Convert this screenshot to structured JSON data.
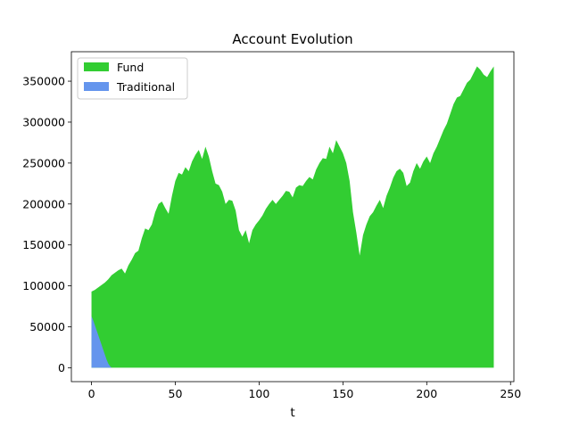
{
  "chart_data": {
    "type": "area",
    "title": "Account Evolution",
    "xlabel": "t",
    "ylabel": "",
    "xlim": [
      -12,
      252
    ],
    "ylim": [
      -17000,
      386000
    ],
    "xticks": [
      0,
      50,
      100,
      150,
      200,
      250
    ],
    "yticks": [
      0,
      50000,
      100000,
      150000,
      200000,
      250000,
      300000,
      350000
    ],
    "ytick_labels": [
      "0",
      "50000",
      "100000",
      "150000",
      "200000",
      "250000",
      "300000",
      "350000"
    ],
    "legend_position": "upper-left",
    "series": [
      {
        "name": "Fund",
        "color": "#32cd32",
        "x": [
          0,
          2,
          4,
          6,
          8,
          10,
          12,
          14,
          16,
          18,
          20,
          22,
          24,
          26,
          28,
          30,
          32,
          34,
          36,
          38,
          40,
          42,
          44,
          46,
          48,
          50,
          52,
          54,
          56,
          58,
          60,
          62,
          64,
          66,
          68,
          70,
          72,
          74,
          76,
          78,
          80,
          82,
          84,
          86,
          88,
          90,
          92,
          94,
          96,
          98,
          100,
          102,
          104,
          106,
          108,
          110,
          112,
          114,
          116,
          118,
          120,
          122,
          124,
          126,
          128,
          130,
          132,
          134,
          136,
          138,
          140,
          142,
          144,
          146,
          148,
          150,
          152,
          154,
          156,
          158,
          160,
          162,
          164,
          166,
          168,
          170,
          172,
          174,
          176,
          178,
          180,
          182,
          184,
          186,
          188,
          190,
          192,
          194,
          196,
          198,
          200,
          202,
          204,
          206,
          208,
          210,
          212,
          214,
          216,
          218,
          220,
          222,
          224,
          226,
          228,
          230,
          232,
          234,
          236,
          238,
          240
        ],
        "values": [
          93000,
          95000,
          98000,
          101000,
          104000,
          108000,
          113000,
          116000,
          119000,
          121000,
          115000,
          125000,
          132000,
          140000,
          143000,
          158000,
          170000,
          168000,
          175000,
          190000,
          200000,
          203000,
          195000,
          188000,
          210000,
          228000,
          238000,
          236000,
          245000,
          240000,
          252000,
          260000,
          266000,
          255000,
          270000,
          258000,
          240000,
          225000,
          223000,
          215000,
          200000,
          205000,
          204000,
          192000,
          168000,
          160000,
          168000,
          152000,
          168000,
          175000,
          180000,
          186000,
          194000,
          200000,
          205000,
          200000,
          205000,
          210000,
          216000,
          215000,
          208000,
          220000,
          223000,
          222000,
          228000,
          233000,
          230000,
          242000,
          250000,
          256000,
          255000,
          270000,
          262000,
          278000,
          270000,
          262000,
          250000,
          228000,
          190000,
          165000,
          137000,
          162000,
          175000,
          185000,
          190000,
          198000,
          205000,
          195000,
          210000,
          220000,
          232000,
          240000,
          243000,
          238000,
          222000,
          226000,
          240000,
          250000,
          243000,
          252000,
          258000,
          250000,
          262000,
          270000,
          280000,
          290000,
          298000,
          310000,
          322000,
          330000,
          332000,
          340000,
          348000,
          352000,
          360000,
          368000,
          364000,
          358000,
          355000,
          362000,
          368000
        ]
      },
      {
        "name": "Traditional",
        "color": "#6495ed",
        "x": [
          0,
          1,
          2,
          3,
          4,
          5,
          6,
          7,
          8,
          9,
          10,
          11,
          12,
          240
        ],
        "values": [
          63000,
          58000,
          52000,
          46000,
          40000,
          34000,
          28000,
          22000,
          16000,
          10000,
          5000,
          2000,
          0,
          0
        ]
      }
    ]
  }
}
